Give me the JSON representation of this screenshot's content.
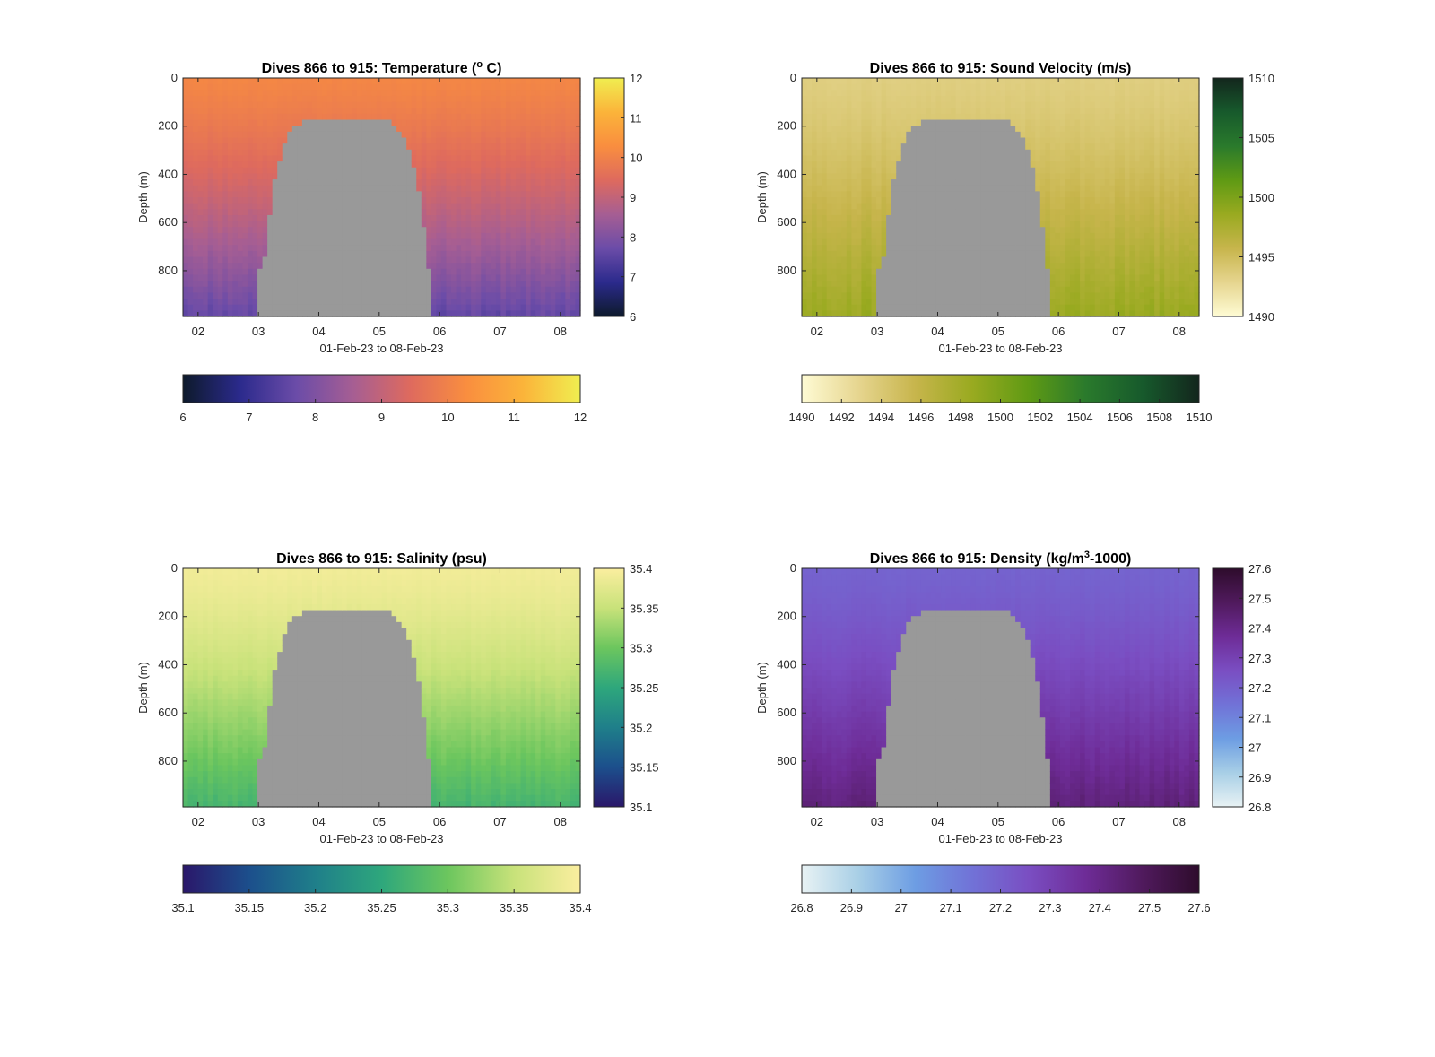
{
  "chart_data": [
    {
      "type": "heatmap",
      "title": "Dives 866 to 915: Temperature (° C)",
      "title_parts": {
        "before": "Dives 866 to 915: Temperature (",
        "sup": "o",
        "after": " C)"
      },
      "xlabel": "01-Feb-23 to 08-Feb-23",
      "ylabel": "Depth (m)",
      "x_ticks": [
        "02",
        "03",
        "04",
        "05",
        "06",
        "07",
        "08"
      ],
      "y_ticks": [
        "0",
        "200",
        "400",
        "600",
        "800"
      ],
      "y_reversed": true,
      "ylim": [
        0,
        990
      ],
      "colormap": [
        "#0d1a2b",
        "#2b2a8c",
        "#6b4ca8",
        "#a65e93",
        "#de6a5e",
        "#f98e3f",
        "#fbb43a",
        "#f0ee50"
      ],
      "colorbar": {
        "min": 6,
        "max": 12,
        "ticks": [
          "6",
          "7",
          "8",
          "9",
          "10",
          "11",
          "12"
        ]
      },
      "surface_value": 10.1,
      "deep_value": 7.6,
      "no_data_color": "#999999"
    },
    {
      "type": "heatmap",
      "title": "Dives 866 to 915: Sound Velocity (m/s)",
      "xlabel": "01-Feb-23 to 08-Feb-23",
      "ylabel": "Depth (m)",
      "x_ticks": [
        "02",
        "03",
        "04",
        "05",
        "06",
        "07",
        "08"
      ],
      "y_ticks": [
        "0",
        "200",
        "400",
        "600",
        "800"
      ],
      "y_reversed": true,
      "ylim": [
        0,
        990
      ],
      "colormap": [
        "#fefbd4",
        "#e6d58f",
        "#c7b54c",
        "#99aa20",
        "#5f9a14",
        "#2a7a2c",
        "#175a2c",
        "#13261d"
      ],
      "colorbar": {
        "min": 1490,
        "max": 1510,
        "ticks": [
          "1490",
          "1495",
          "1500",
          "1505",
          "1510"
        ]
      },
      "h_colorbar_ticks": [
        "1490",
        "1492",
        "1494",
        "1496",
        "1498",
        "1500",
        "1502",
        "1504",
        "1506",
        "1508",
        "1510"
      ],
      "surface_value": 1493.5,
      "deep_value": 1498.5,
      "no_data_color": "#999999"
    },
    {
      "type": "heatmap",
      "title": "Dives 866 to 915: Salinity (psu)",
      "xlabel": "01-Feb-23 to 08-Feb-23",
      "ylabel": "Depth (m)",
      "x_ticks": [
        "02",
        "03",
        "04",
        "05",
        "06",
        "07",
        "08"
      ],
      "y_ticks": [
        "0",
        "200",
        "400",
        "600",
        "800"
      ],
      "y_reversed": true,
      "ylim": [
        0,
        990
      ],
      "colormap": [
        "#2a176a",
        "#1c4f8c",
        "#1f7f8a",
        "#2ea77c",
        "#6cc65e",
        "#c8e27a",
        "#fbee9f"
      ],
      "colorbar": {
        "min": 35.1,
        "max": 35.4,
        "ticks": [
          "35.1",
          "35.15",
          "35.2",
          "35.25",
          "35.3",
          "35.35",
          "35.4"
        ]
      },
      "surface_value": 35.39,
      "deep_value": 35.27,
      "no_data_color": "#999999"
    },
    {
      "type": "heatmap",
      "title": "Dives 866 to 915: Density (kg/m³-1000)",
      "title_parts": {
        "before": "Dives 866 to 915: Density (kg/m",
        "sup": "3",
        "after": "-1000)"
      },
      "xlabel": "01-Feb-23 to 08-Feb-23",
      "ylabel": "Depth (m)",
      "x_ticks": [
        "02",
        "03",
        "04",
        "05",
        "06",
        "07",
        "08"
      ],
      "y_ticks": [
        "0",
        "200",
        "400",
        "600",
        "800"
      ],
      "y_reversed": true,
      "ylim": [
        0,
        990
      ],
      "colormap": [
        "#e8f2f4",
        "#a8cfe6",
        "#6d9de3",
        "#7172d7",
        "#7a4ec2",
        "#6e2c97",
        "#501a5d",
        "#2e0c2c"
      ],
      "colorbar": {
        "min": 26.8,
        "max": 27.6,
        "ticks": [
          "26.8",
          "26.9",
          "27",
          "27.1",
          "27.2",
          "27.3",
          "27.4",
          "27.5",
          "27.6"
        ]
      },
      "surface_value": 27.19,
      "deep_value": 27.43,
      "no_data_color": "#999999"
    }
  ]
}
